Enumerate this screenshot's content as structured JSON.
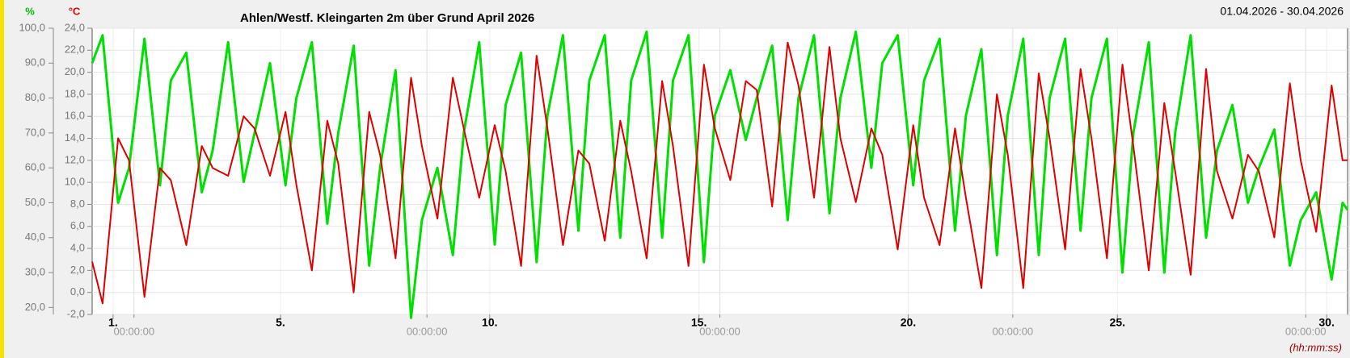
{
  "chart_data": {
    "type": "line",
    "title": "Ahlen/Westf. Kleingarten 2m über Grund April 2026",
    "subtitle": "01.04.2026 - 30.04.2026",
    "ylabel": "%",
    "y2label": "°C",
    "xlabel": "(hh:mm:ss)",
    "x": [
      0,
      0.25,
      0.62,
      0.88,
      1.25,
      1.62,
      1.88,
      2.25,
      2.62,
      2.88,
      3.25,
      3.62,
      3.88,
      4.25,
      4.62,
      4.88,
      5.25,
      5.62,
      5.88,
      6.25,
      6.62,
      6.88,
      7.25,
      7.62,
      7.88,
      8.25,
      8.62,
      8.88,
      9.25,
      9.62,
      9.88,
      10.25,
      10.62,
      10.88,
      11.25,
      11.62,
      11.88,
      12.25,
      12.62,
      12.88,
      13.25,
      13.62,
      13.88,
      14.25,
      14.62,
      14.88,
      15.25,
      15.62,
      15.88,
      16.25,
      16.62,
      16.88,
      17.25,
      17.62,
      17.88,
      18.25,
      18.62,
      18.88,
      19.25,
      19.62,
      19.88,
      20.25,
      20.62,
      20.88,
      21.25,
      21.62,
      21.88,
      22.25,
      22.62,
      22.88,
      23.25,
      23.62,
      23.88,
      24.25,
      24.62,
      24.88,
      25.25,
      25.62,
      25.88,
      26.25,
      26.62,
      26.88,
      27.25,
      27.62,
      27.88,
      28.25,
      28.62,
      28.88,
      29.25,
      29.62,
      29.88,
      30
    ],
    "series": [
      {
        "name": "%",
        "color": "#00e000",
        "values": [
          90,
          98,
          50,
          60,
          97,
          55,
          85,
          93,
          53,
          65,
          96,
          56,
          70,
          90,
          55,
          80,
          96,
          44,
          70,
          95,
          32,
          60,
          88,
          17,
          45,
          60,
          35,
          70,
          96,
          38,
          78,
          93,
          33,
          75,
          98,
          42,
          85,
          98,
          40,
          85,
          99,
          40,
          85,
          98,
          33,
          75,
          88,
          68,
          80,
          95,
          45,
          80,
          98,
          47,
          80,
          99,
          60,
          90,
          98,
          55,
          85,
          97,
          42,
          75,
          94,
          35,
          75,
          97,
          35,
          80,
          97,
          42,
          80,
          97,
          30,
          70,
          96,
          30,
          70,
          98,
          40,
          65,
          78,
          50,
          60,
          71,
          32,
          45,
          53,
          28,
          50,
          48
        ]
      },
      {
        "name": "°C",
        "color": "#e00000",
        "axis": "y2",
        "values": [
          2.8,
          -1.0,
          14,
          12,
          -0.4,
          11.3,
          10.2,
          4.3,
          13.3,
          11.3,
          10.6,
          16,
          14.9,
          10.6,
          16.4,
          9.8,
          2,
          15.6,
          11.7,
          0,
          16.4,
          12.5,
          3.1,
          19.5,
          13.3,
          6.7,
          19.5,
          14.9,
          8.6,
          15.2,
          11,
          2.4,
          21.5,
          14.9,
          4.3,
          12.9,
          11.7,
          4.7,
          15.6,
          11,
          3.1,
          19.2,
          13.3,
          2.4,
          20.7,
          14.9,
          10.2,
          19.2,
          18.4,
          7.8,
          22.7,
          18.8,
          8.6,
          22.3,
          14,
          8.2,
          14.9,
          12.5,
          3.9,
          15.2,
          8.6,
          4.3,
          14.9,
          8.6,
          0.4,
          18,
          12.5,
          0.4,
          19.9,
          14,
          3.9,
          20.3,
          14,
          3.1,
          20.7,
          13.3,
          2,
          17.2,
          11,
          1.6,
          20.3,
          11,
          6.7,
          12.5,
          11,
          5,
          19,
          12,
          5.5,
          18.8,
          12,
          12
        ]
      }
    ],
    "xlim": [
      0,
      30
    ],
    "xticks": [
      {
        "value": 0.5,
        "label": "1."
      },
      {
        "value": 4.5,
        "label": "5."
      },
      {
        "value": 9.5,
        "label": "10."
      },
      {
        "value": 14.5,
        "label": "15."
      },
      {
        "value": 19.5,
        "label": "20."
      },
      {
        "value": 24.5,
        "label": "25."
      },
      {
        "value": 29.5,
        "label": "30."
      }
    ],
    "xtime_ticks": [
      {
        "value": 1,
        "label": "00:00:00"
      },
      {
        "value": 8,
        "label": "00:00:00"
      },
      {
        "value": 15,
        "label": "00:00:00"
      },
      {
        "value": 22,
        "label": "00:00:00"
      },
      {
        "value": 29,
        "label": "00:00:00"
      }
    ],
    "ylim": [
      18,
      100
    ],
    "yticks": [
      {
        "value": 20,
        "label": "20,0"
      },
      {
        "value": 30,
        "label": "30,0"
      },
      {
        "value": 40,
        "label": "40,0"
      },
      {
        "value": 50,
        "label": "50,0"
      },
      {
        "value": 60,
        "label": "60,0"
      },
      {
        "value": 70,
        "label": "70,0"
      },
      {
        "value": 80,
        "label": "80,0"
      },
      {
        "value": 90,
        "label": "90,0"
      },
      {
        "value": 100,
        "label": "100,0"
      }
    ],
    "y2lim": [
      -2,
      24
    ],
    "y2ticks": [
      {
        "value": -2,
        "label": "-2,0"
      },
      {
        "value": 0,
        "label": "0,0"
      },
      {
        "value": 2,
        "label": "2,0"
      },
      {
        "value": 4,
        "label": "4,0"
      },
      {
        "value": 6,
        "label": "6,0"
      },
      {
        "value": 8,
        "label": "8,0"
      },
      {
        "value": 10,
        "label": "10,0"
      },
      {
        "value": 12,
        "label": "12,0"
      },
      {
        "value": 14,
        "label": "14,0"
      },
      {
        "value": 16,
        "label": "16,0"
      },
      {
        "value": 18,
        "label": "18,0"
      },
      {
        "value": 20,
        "label": "20,0"
      },
      {
        "value": 22,
        "label": "22,0"
      },
      {
        "value": 24,
        "label": "24,0"
      }
    ],
    "grid": true
  }
}
